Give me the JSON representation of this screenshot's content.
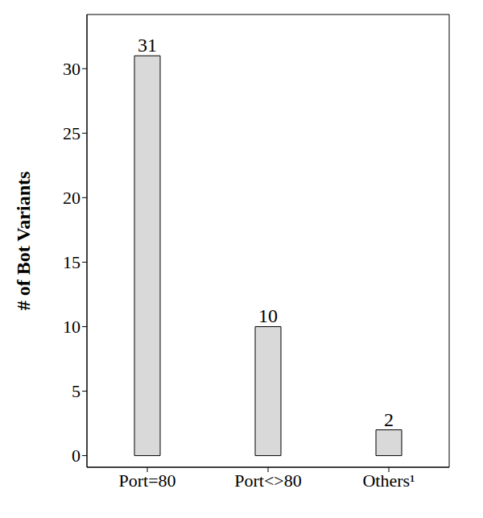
{
  "chart_data": {
    "type": "bar",
    "categories": [
      "Port=80",
      "Port<>80",
      "Others¹"
    ],
    "values": [
      31,
      10,
      2
    ],
    "ylabel": "# of Bot Variants",
    "ylim": [
      -0.9,
      34.2
    ],
    "yticks": [
      0,
      5,
      10,
      15,
      20,
      25,
      30
    ],
    "color": "#d9d9d9",
    "data_labels": true,
    "grid": false
  }
}
